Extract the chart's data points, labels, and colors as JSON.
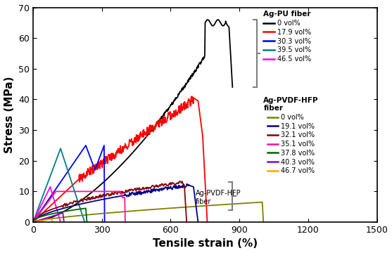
{
  "title": "",
  "xlabel": "Tensile strain (%)",
  "ylabel": "Stress (MPa)",
  "xlim": [
    0,
    1500
  ],
  "ylim": [
    0,
    70
  ],
  "xticks": [
    0,
    300,
    600,
    900,
    1200,
    1500
  ],
  "yticks": [
    0,
    10,
    20,
    30,
    40,
    50,
    60,
    70
  ],
  "ag_pu_label": "Ag-PU fiber",
  "ag_pvdf_label": "Ag-PVDF-HFP\nfiber",
  "pu_series": [
    {
      "label": "0 vol%",
      "color": "#000000"
    },
    {
      "label": "17.9 vol%",
      "color": "#ff0000"
    },
    {
      "label": "30.3 vol%",
      "color": "#0000ff"
    },
    {
      "label": "39.5 vol%",
      "color": "#008080"
    },
    {
      "label": "46.5 vol%",
      "color": "#ff00ff"
    }
  ],
  "pvdf_series": [
    {
      "label": "0 vol%",
      "color": "#808000"
    },
    {
      "label": "19.1 vol%",
      "color": "#00008b"
    },
    {
      "label": "32.1 vol%",
      "color": "#8b0000"
    },
    {
      "label": "35.1 vol%",
      "color": "#ff1493"
    },
    {
      "label": "37.8 vol%",
      "color": "#006400"
    },
    {
      "label": "40.3 vol%",
      "color": "#9400d3"
    },
    {
      "label": "46.7 vol%",
      "color": "#ffa500"
    }
  ]
}
